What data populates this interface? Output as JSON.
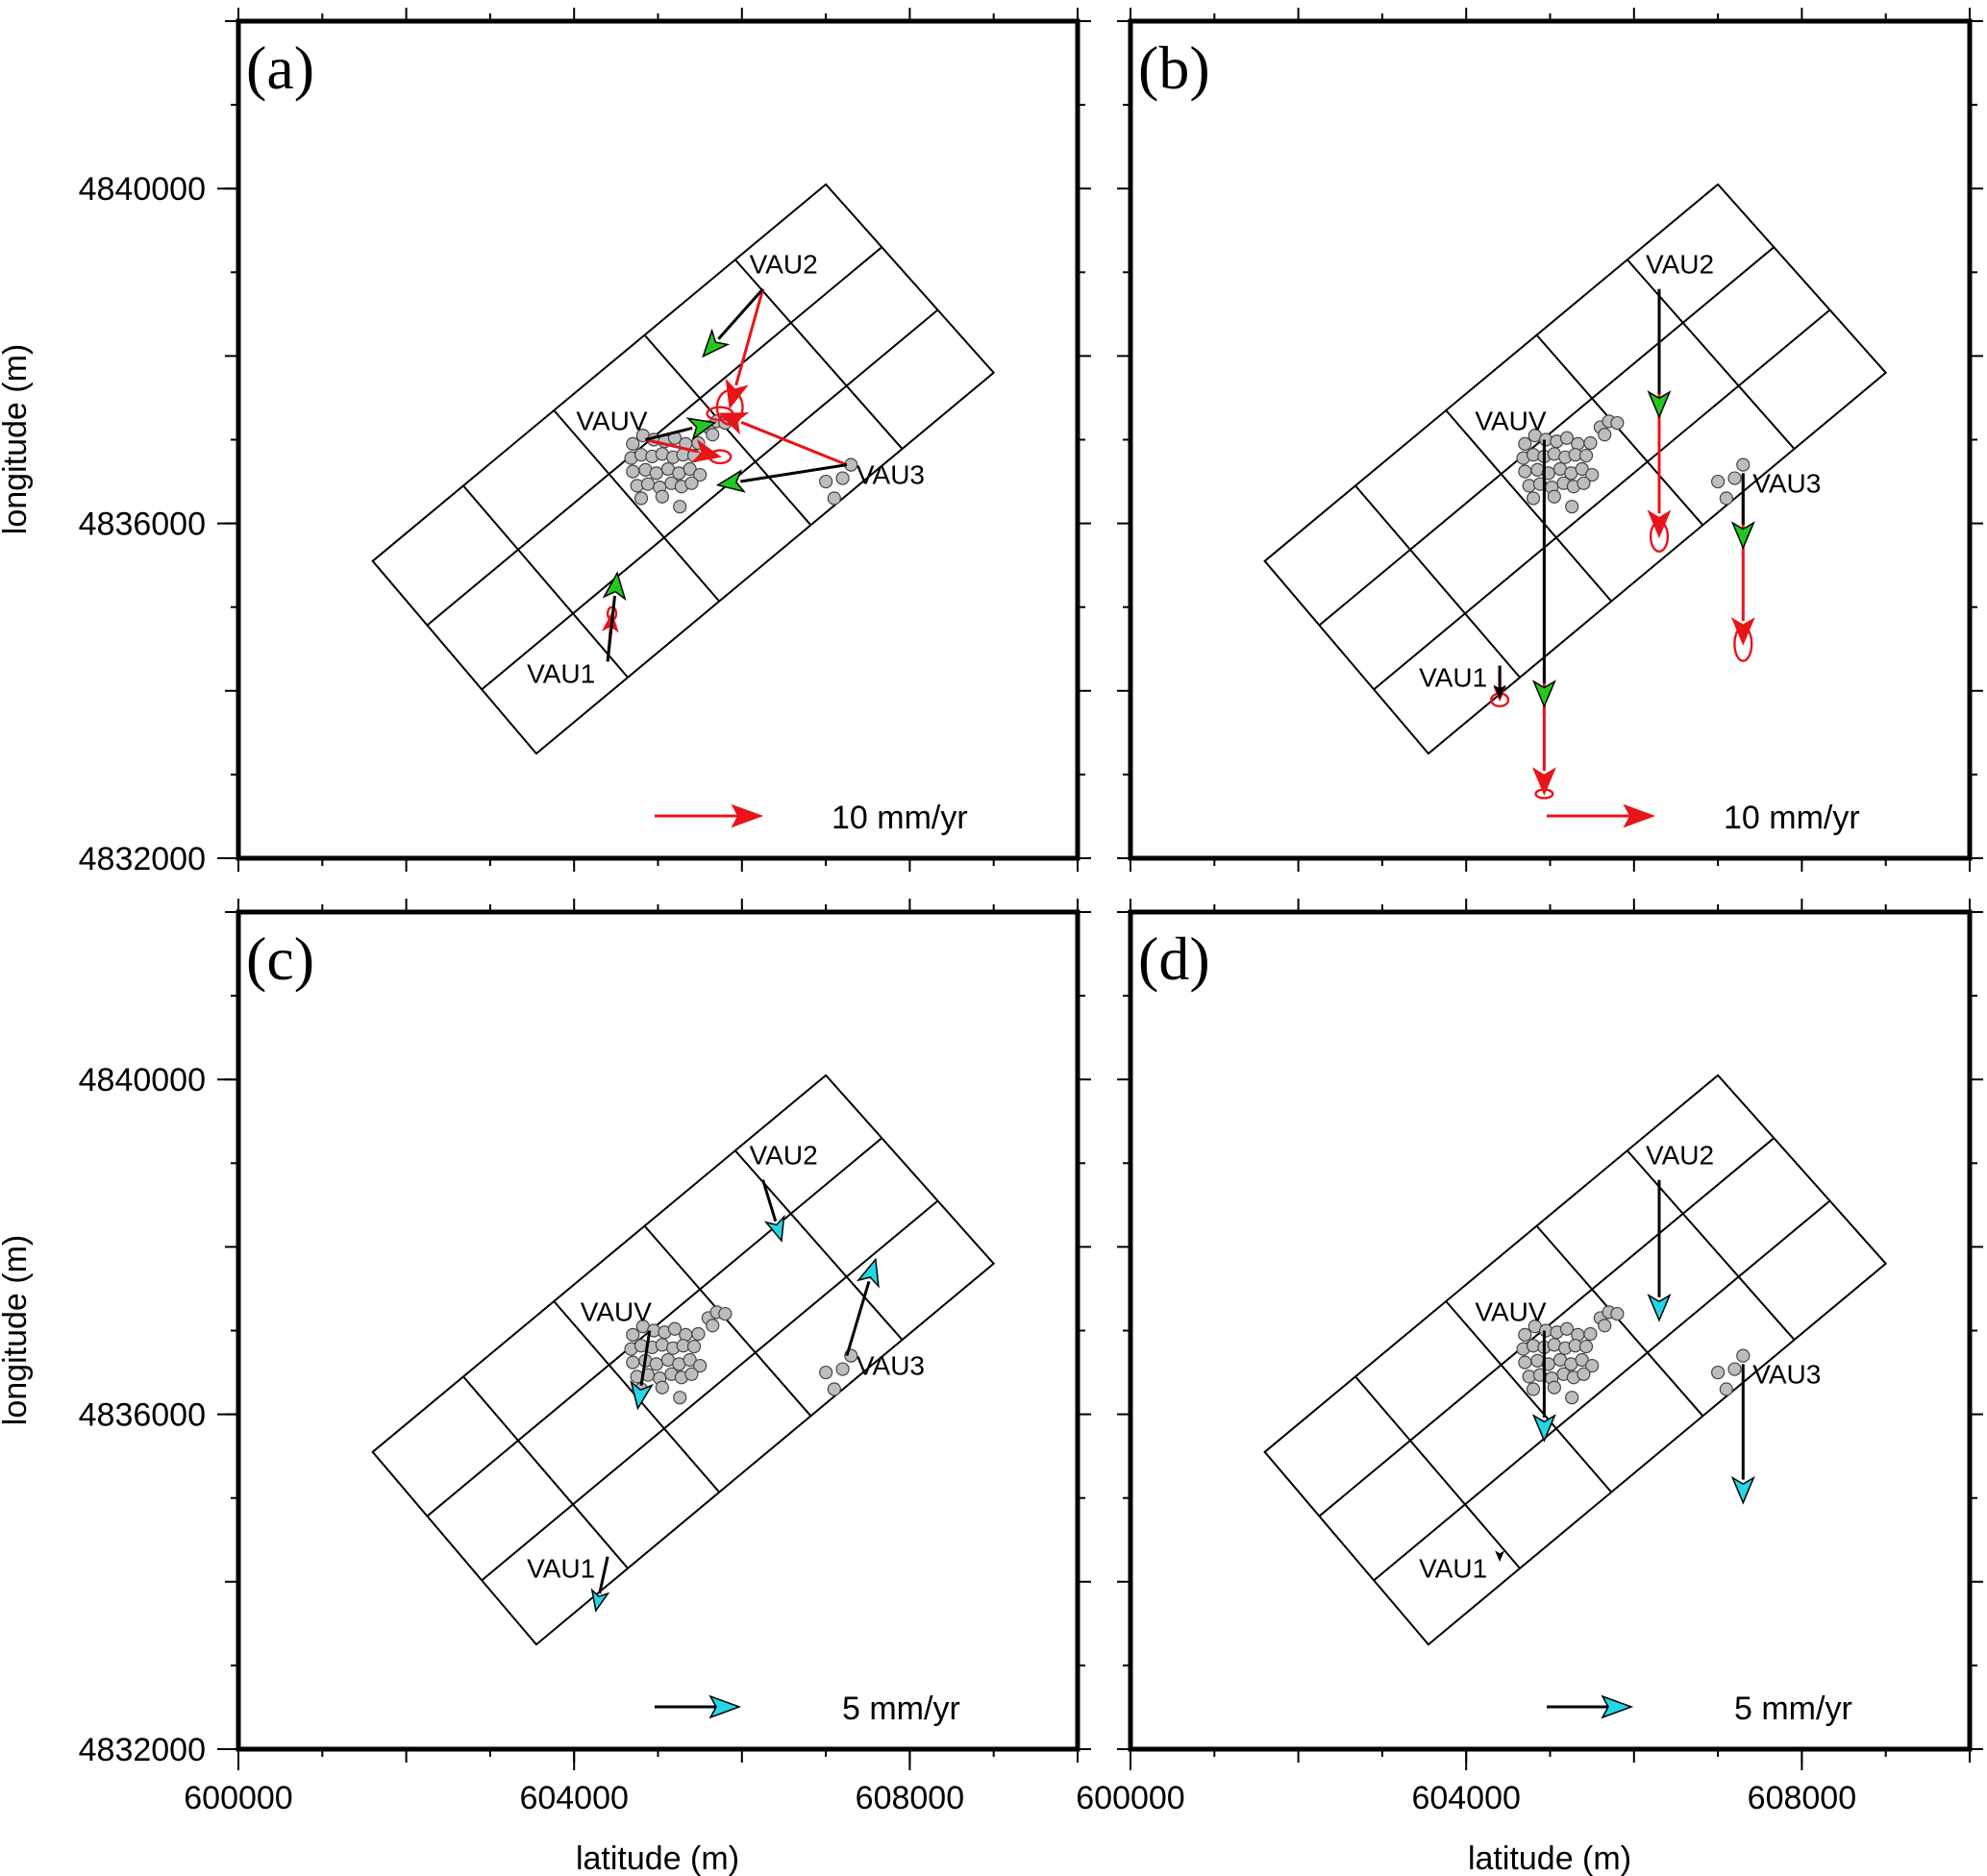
{
  "chart_data": [
    {
      "type": "vector-map",
      "panel_label": "(a)",
      "xlabel": "",
      "ylabel": "longitude (m)",
      "xlim": [
        600000,
        610000
      ],
      "ylim": [
        4832000,
        4842000
      ],
      "x_ticks": [
        600000,
        604000,
        608000
      ],
      "y_ticks": [
        4832000,
        4836000,
        4840000
      ],
      "scale_text": "10 mm/yr",
      "scale_color": "#e8141a",
      "scale_value": 10,
      "stations": [
        {
          "name": "VAUV",
          "x": 604850,
          "y": 4837000,
          "vectors": [
            {
              "kind": "observed",
              "color": "#e8141a",
              "dx": 7.0,
              "dy": -1.6,
              "ellipse": [
                0.5,
                0.3
              ]
            },
            {
              "kind": "model",
              "color": "#000000",
              "head": "#22c81e",
              "dx": 6.5,
              "dy": 1.6
            }
          ]
        },
        {
          "name": "VAU2",
          "x": 606250,
          "y": 4838800,
          "vectors": [
            {
              "kind": "observed",
              "color": "#e8141a",
              "dx": -3.1,
              "dy": -11.1,
              "ellipse": [
                0.6,
                0.8
              ]
            },
            {
              "kind": "model",
              "color": "#000000",
              "head": "#22c81e",
              "dx": -5.6,
              "dy": -6.3
            }
          ]
        },
        {
          "name": "VAU3",
          "x": 607250,
          "y": 4836700,
          "vectors": [
            {
              "kind": "observed",
              "color": "#e8141a",
              "dx": -11.9,
              "dy": 4.8,
              "ellipse": [
                0.6,
                0.3
              ]
            },
            {
              "kind": "model",
              "color": "#000000",
              "head": "#22c81e",
              "dx": -12.1,
              "dy": -1.9
            }
          ]
        },
        {
          "name": "VAU1",
          "x": 604400,
          "y": 4834350,
          "vectors": [
            {
              "kind": "observed",
              "color": "#e8141a",
              "dx": 0.4,
              "dy": 4.5,
              "ellipse": [
                0.2,
                0.3
              ]
            },
            {
              "kind": "model",
              "color": "#000000",
              "head": "#22c81e",
              "dx": 0.9,
              "dy": 8.3
            }
          ]
        }
      ]
    },
    {
      "type": "vector-map",
      "panel_label": "(b)",
      "xlabel": "",
      "ylabel": "",
      "xlim": [
        600000,
        610000
      ],
      "ylim": [
        4832000,
        4842000
      ],
      "x_ticks": [
        600000,
        604000,
        608000
      ],
      "y_ticks": [
        4832000,
        4836000,
        4840000
      ],
      "scale_text": "10 mm/yr",
      "scale_color": "#e8141a",
      "scale_value": 10,
      "stations": [
        {
          "name": "VAUV",
          "x": 604930,
          "y": 4837000,
          "vectors": [
            {
              "kind": "observed",
              "color": "#e8141a",
              "dx": 0.0,
              "dy": -33.2,
              "ellipse": [
                0.4,
                0.2
              ]
            },
            {
              "kind": "model",
              "color": "#000000",
              "head": "#22c81e",
              "dx": 0.0,
              "dy": -25.0
            }
          ]
        },
        {
          "name": "VAU2",
          "x": 606300,
          "y": 4838800,
          "vectors": [
            {
              "kind": "observed",
              "color": "#e8141a",
              "dx": 0.0,
              "dy": -23.2,
              "ellipse": [
                0.4,
                0.7
              ]
            },
            {
              "kind": "model",
              "color": "#000000",
              "head": "#22c81e",
              "dx": 0.0,
              "dy": -12.0
            }
          ]
        },
        {
          "name": "VAU3",
          "x": 607300,
          "y": 4836600,
          "vectors": [
            {
              "kind": "observed",
              "color": "#e8141a",
              "dx": 0.0,
              "dy": -16.0,
              "ellipse": [
                0.4,
                0.8
              ]
            },
            {
              "kind": "model",
              "color": "#000000",
              "head": "#22c81e",
              "dx": 0.0,
              "dy": -7.0
            }
          ]
        },
        {
          "name": "VAU1",
          "x": 604400,
          "y": 4834300,
          "vectors": [
            {
              "kind": "observed",
              "color": "#e8141a",
              "dx": 0.0,
              "dy": -3.2,
              "ellipse": [
                0.4,
                0.3
              ]
            },
            {
              "kind": "model",
              "color": "#000000",
              "head": "#000000",
              "dx": 0.0,
              "dy": -3.0
            }
          ]
        }
      ]
    },
    {
      "type": "vector-map",
      "panel_label": "(c)",
      "xlabel": "latitude (m)",
      "ylabel": "longitude (m)",
      "xlim": [
        600000,
        610000
      ],
      "ylim": [
        4832000,
        4842000
      ],
      "x_ticks": [
        600000,
        604000,
        608000
      ],
      "y_ticks": [
        4832000,
        4836000,
        4840000
      ],
      "scale_text": "5 mm/yr",
      "scale_color": "#24d6e6",
      "scale_value": 5,
      "stations": [
        {
          "name": "VAUV",
          "x": 604900,
          "y": 4837000,
          "vectors": [
            {
              "kind": "model",
              "color": "#000000",
              "head": "#24d6e6",
              "dx": -0.7,
              "dy": -4.6
            }
          ]
        },
        {
          "name": "VAU2",
          "x": 606250,
          "y": 4838800,
          "vectors": [
            {
              "kind": "model",
              "color": "#000000",
              "head": "#24d6e6",
              "dx": 1.1,
              "dy": -3.6
            }
          ]
        },
        {
          "name": "VAU3",
          "x": 607250,
          "y": 4836700,
          "vectors": [
            {
              "kind": "model",
              "color": "#000000",
              "head": "#24d6e6",
              "dx": 1.7,
              "dy": 5.7
            }
          ]
        },
        {
          "name": "VAU1",
          "x": 604400,
          "y": 4834300,
          "vectors": [
            {
              "kind": "model",
              "color": "#000000",
              "head": "#24d6e6",
              "dx": -0.7,
              "dy": -3.2
            }
          ]
        }
      ]
    },
    {
      "type": "vector-map",
      "panel_label": "(d)",
      "xlabel": "latitude (m)",
      "ylabel": "",
      "xlim": [
        600000,
        610000
      ],
      "ylim": [
        4832000,
        4842000
      ],
      "x_ticks": [
        600000,
        604000,
        608000
      ],
      "y_ticks": [
        4832000,
        4836000,
        4840000
      ],
      "scale_text": "5 mm/yr",
      "scale_color": "#24d6e6",
      "scale_value": 5,
      "stations": [
        {
          "name": "VAUV",
          "x": 604930,
          "y": 4837000,
          "vectors": [
            {
              "kind": "model",
              "color": "#000000",
              "head": "#24d6e6",
              "dx": 0.0,
              "dy": -6.5
            }
          ]
        },
        {
          "name": "VAU2",
          "x": 606300,
          "y": 4838800,
          "vectors": [
            {
              "kind": "model",
              "color": "#000000",
              "head": "#24d6e6",
              "dx": 0.0,
              "dy": -8.3
            }
          ]
        },
        {
          "name": "VAU3",
          "x": 607300,
          "y": 4836600,
          "vectors": [
            {
              "kind": "model",
              "color": "#000000",
              "head": "#24d6e6",
              "dx": 0.0,
              "dy": -8.2
            }
          ]
        },
        {
          "name": "VAU1",
          "x": 604400,
          "y": 4834300,
          "vectors": [
            {
              "kind": "model",
              "color": "#000000",
              "head": "#000000",
              "dx": 0.0,
              "dy": -0.2
            }
          ]
        }
      ]
    }
  ],
  "fault_grid": {
    "corners": [
      [
        601600,
        4835550
      ],
      [
        603550,
        4833250
      ],
      [
        609000,
        4837800
      ],
      [
        607000,
        4840050
      ]
    ],
    "along_strike_cells": 5,
    "down_dip_cells": 3
  },
  "seismicity": {
    "color": "#bdbdbd",
    "points": [
      [
        604700,
        4836950
      ],
      [
        604820,
        4837050
      ],
      [
        604950,
        4837000
      ],
      [
        605080,
        4836980
      ],
      [
        605200,
        4837020
      ],
      [
        605330,
        4836950
      ],
      [
        605480,
        4836960
      ],
      [
        605600,
        4837150
      ],
      [
        605700,
        4837220
      ],
      [
        605800,
        4837200
      ],
      [
        605650,
        4837060
      ],
      [
        604680,
        4836780
      ],
      [
        604800,
        4836820
      ],
      [
        604930,
        4836800
      ],
      [
        605050,
        4836830
      ],
      [
        605180,
        4836790
      ],
      [
        605300,
        4836820
      ],
      [
        605430,
        4836810
      ],
      [
        604700,
        4836620
      ],
      [
        604850,
        4836640
      ],
      [
        604980,
        4836600
      ],
      [
        605120,
        4836650
      ],
      [
        605250,
        4836600
      ],
      [
        605380,
        4836650
      ],
      [
        605500,
        4836580
      ],
      [
        604750,
        4836450
      ],
      [
        604880,
        4836470
      ],
      [
        605020,
        4836430
      ],
      [
        605160,
        4836480
      ],
      [
        605280,
        4836440
      ],
      [
        605400,
        4836480
      ],
      [
        604800,
        4836300
      ],
      [
        605050,
        4836320
      ],
      [
        605260,
        4836200
      ],
      [
        607000,
        4836500
      ],
      [
        607300,
        4836700
      ],
      [
        607200,
        4836540
      ],
      [
        607100,
        4836300
      ]
    ]
  }
}
